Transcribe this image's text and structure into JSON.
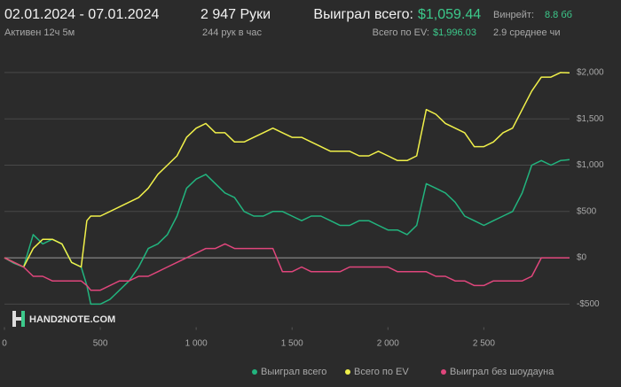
{
  "header": {
    "date_range": "02.01.2024 - 07.01.2024",
    "active": "Активен 12ч 5м",
    "hands": "2 947 Руки",
    "hands_per_hour": "244 рук в час",
    "won_label": "Выиграл всего:",
    "won_value": "$1,059.44",
    "ev_label": "Всего по EV:",
    "ev_value": "$1,996.03",
    "winrate_label": "Винрейт:",
    "winrate_value": "8.8 бб",
    "avg_label": "2.9 среднее чи"
  },
  "watermark": "HAND2NOTE.COM",
  "chart_data": {
    "type": "line",
    "grid": true,
    "legend": "bottom-right",
    "x": [
      0,
      50,
      100,
      150,
      200,
      250,
      300,
      350,
      400,
      430,
      450,
      500,
      550,
      600,
      650,
      700,
      750,
      800,
      850,
      900,
      950,
      1000,
      1050,
      1100,
      1150,
      1200,
      1250,
      1300,
      1350,
      1400,
      1450,
      1500,
      1550,
      1600,
      1650,
      1700,
      1750,
      1800,
      1850,
      1900,
      1950,
      2000,
      2050,
      2100,
      2150,
      2200,
      2250,
      2300,
      2350,
      2400,
      2450,
      2500,
      2550,
      2600,
      2650,
      2700,
      2750,
      2800,
      2850,
      2900,
      2947
    ],
    "xlim": [
      0,
      2947
    ],
    "xticks": [
      0,
      500,
      {
        "value": 1000,
        "label": "1 000"
      },
      {
        "value": 1500,
        "label": "1 500"
      },
      {
        "value": 2000,
        "label": "2 000"
      },
      {
        "value": 2500,
        "label": "2 500"
      }
    ],
    "ylim": [
      -750,
      2200
    ],
    "yticks": [
      {
        "value": -500,
        "label": "-$500"
      },
      {
        "value": 0,
        "label": "$0"
      },
      {
        "value": 500,
        "label": "$500"
      },
      {
        "value": 1000,
        "label": "$1,000"
      },
      {
        "value": 1500,
        "label": "$1,500"
      },
      {
        "value": 2000,
        "label": "$2,000"
      }
    ],
    "series": [
      {
        "name": "Выиграл всего",
        "color": "#22b47e",
        "values": [
          0,
          -60,
          -100,
          250,
          150,
          200,
          150,
          -50,
          -100,
          -300,
          -500,
          -500,
          -450,
          -350,
          -250,
          -100,
          100,
          150,
          250,
          450,
          750,
          850,
          900,
          800,
          700,
          650,
          500,
          450,
          450,
          500,
          500,
          450,
          400,
          450,
          450,
          400,
          350,
          350,
          400,
          400,
          350,
          300,
          300,
          250,
          350,
          800,
          750,
          700,
          600,
          450,
          400,
          350,
          400,
          450,
          500,
          700,
          1000,
          1050,
          1000,
          1050,
          1059
        ]
      },
      {
        "name": "Всего по EV",
        "color": "#f0f04a",
        "values": [
          0,
          -50,
          -100,
          100,
          200,
          200,
          150,
          -50,
          -100,
          400,
          450,
          450,
          500,
          550,
          600,
          650,
          750,
          900,
          1000,
          1100,
          1300,
          1400,
          1450,
          1350,
          1350,
          1250,
          1250,
          1300,
          1350,
          1400,
          1350,
          1300,
          1300,
          1250,
          1200,
          1150,
          1150,
          1150,
          1100,
          1100,
          1150,
          1100,
          1050,
          1050,
          1100,
          1600,
          1550,
          1450,
          1400,
          1350,
          1200,
          1200,
          1250,
          1350,
          1400,
          1600,
          1800,
          1950,
          1950,
          2000,
          1996
        ]
      },
      {
        "name": "Выиграл без шоудауна",
        "color": "#e0467c",
        "values": [
          0,
          -50,
          -100,
          -200,
          -200,
          -250,
          -250,
          -250,
          -250,
          -300,
          -350,
          -350,
          -300,
          -250,
          -250,
          -200,
          -200,
          -150,
          -100,
          -50,
          0,
          50,
          100,
          100,
          150,
          100,
          100,
          100,
          100,
          100,
          -150,
          -150,
          -100,
          -150,
          -150,
          -150,
          -150,
          -100,
          -100,
          -100,
          -100,
          -100,
          -150,
          -150,
          -150,
          -150,
          -200,
          -200,
          -250,
          -250,
          -300,
          -300,
          -250,
          -250,
          -250,
          -250,
          -200,
          0,
          0,
          0,
          0
        ]
      }
    ]
  }
}
